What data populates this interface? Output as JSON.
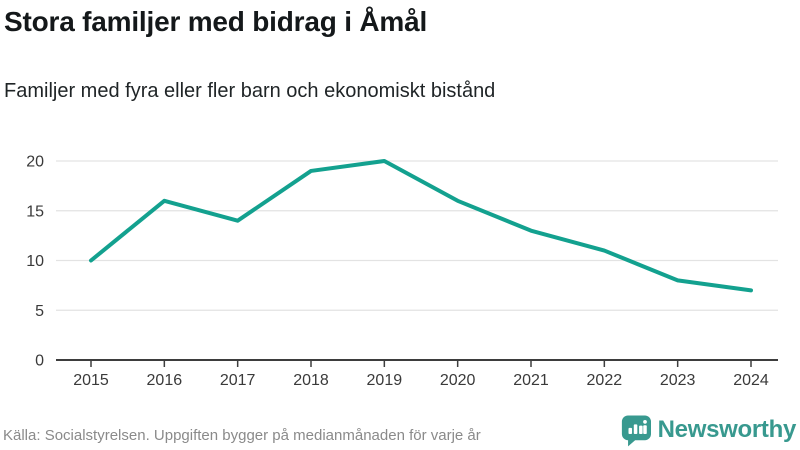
{
  "header": {
    "title": "Stora familjer med bidrag i Åmål",
    "subtitle": "Familjer med fyra eller fler barn och ekonomiskt bistånd"
  },
  "chart_data": {
    "type": "line",
    "categories": [
      "2015",
      "2016",
      "2017",
      "2018",
      "2019",
      "2020",
      "2021",
      "2022",
      "2023",
      "2024"
    ],
    "values": [
      10,
      16,
      14,
      19,
      20,
      16,
      13,
      11,
      8,
      7
    ],
    "title": "Stora familjer med bidrag i Åmål",
    "subtitle": "Familjer med fyra eller fler barn och ekonomiskt bistånd",
    "xlabel": "",
    "ylabel": "",
    "ylim": [
      0,
      20
    ],
    "yticks": [
      0,
      5,
      10,
      15,
      20
    ],
    "grid": true,
    "legend": false
  },
  "footer": {
    "source": "Källa: Socialstyrelsen. Uppgiften bygger på medianmånaden för varje år"
  },
  "logo": {
    "text": "Newsworthy",
    "icon": "bar-chart-speech-bubble-icon"
  },
  "colors": {
    "line": "#13a18f",
    "grid": "#e3e3e3",
    "axis": "#3d3d3d",
    "tick_label": "#3a3a3a",
    "logo": "#38998f"
  }
}
